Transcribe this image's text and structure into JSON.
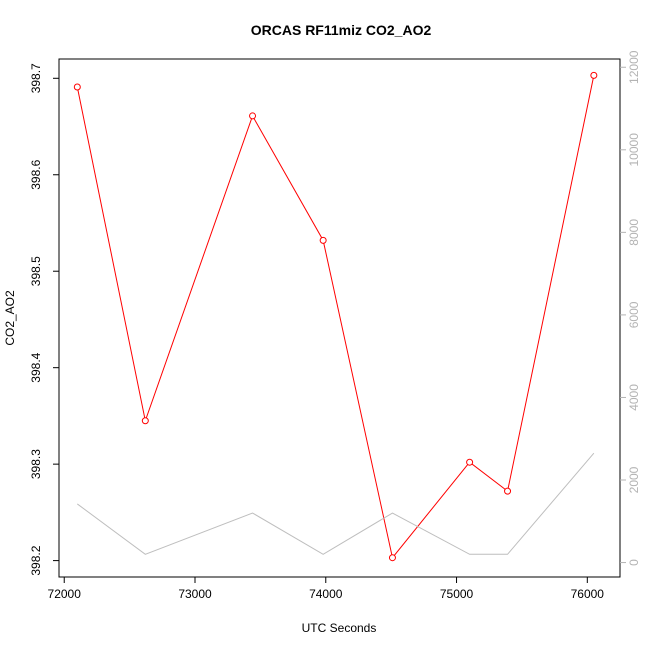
{
  "chart_data": {
    "type": "line",
    "title": "ORCAS RF11miz CO2_AO2",
    "xlabel": "UTC Seconds",
    "ylabel": "CO2_AO2",
    "xlim": [
      71960,
      76250
    ],
    "ylim": [
      398.183,
      398.72
    ],
    "y2lim": [
      -350,
      12200
    ],
    "x_ticks": [
      72000,
      73000,
      74000,
      75000,
      76000
    ],
    "y_ticks": [
      398.2,
      398.3,
      398.4,
      398.5,
      398.6,
      398.7
    ],
    "y2_ticks": [
      0,
      2000,
      4000,
      6000,
      8000,
      10000,
      12000
    ],
    "series": [
      {
        "axis": "left",
        "color": "#ff0000",
        "markers": "open-circle",
        "x": [
          72100,
          72620,
          73440,
          73980,
          74510,
          75100,
          75390,
          76050
        ],
        "y": [
          398.691,
          398.345,
          398.661,
          398.532,
          398.203,
          398.302,
          398.272,
          398.703
        ]
      },
      {
        "axis": "right",
        "color": "#bebebe",
        "markers": "none",
        "x": [
          72100,
          72620,
          73440,
          73980,
          74510,
          75100,
          75390,
          76050
        ],
        "y": [
          1420,
          200,
          1200,
          200,
          1200,
          200,
          200,
          2650
        ]
      }
    ]
  }
}
